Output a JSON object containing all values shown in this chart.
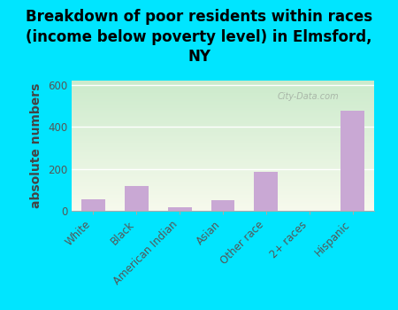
{
  "categories": [
    "White",
    "Black",
    "American Indian",
    "Asian",
    "Other race",
    "2+ races",
    "Hispanic"
  ],
  "values": [
    55,
    120,
    18,
    50,
    185,
    0,
    475
  ],
  "bar_color": "#c9a8d4",
  "title": "Breakdown of poor residents within races\n(income below poverty level) in Elmsford,\nNY",
  "ylabel": "absolute numbers",
  "ylim": [
    0,
    620
  ],
  "yticks": [
    0,
    200,
    400,
    600
  ],
  "background_color": "#00e5ff",
  "watermark": "City-Data.com",
  "title_fontsize": 12,
  "ylabel_fontsize": 10,
  "tick_fontsize": 8.5
}
